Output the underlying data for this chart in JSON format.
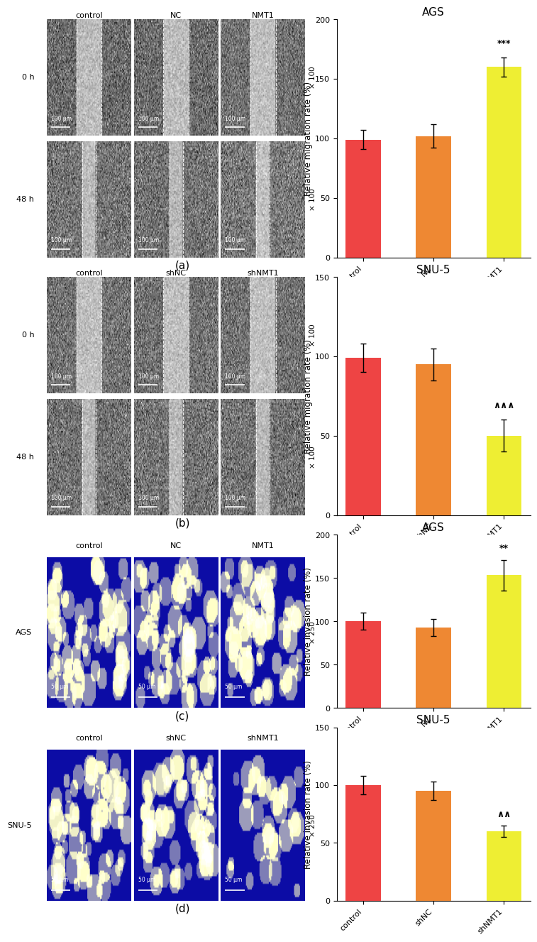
{
  "panels": [
    {
      "id": "a",
      "title": "AGS",
      "ylabel": "Relative migration rate (%)",
      "ylim": [
        0,
        200
      ],
      "yticks": [
        0,
        50,
        100,
        150,
        200
      ],
      "categories": [
        "control",
        "NC",
        "NMT1"
      ],
      "values": [
        99,
        102,
        160
      ],
      "errors": [
        8,
        10,
        8
      ],
      "colors": [
        "#ee4444",
        "#ee8833",
        "#eeee33"
      ],
      "sig_symbol": "***",
      "sig_bar_index": 2
    },
    {
      "id": "b",
      "title": "SNU-5",
      "ylabel": "Relative migration rate (%)",
      "ylim": [
        0,
        150
      ],
      "yticks": [
        0,
        50,
        100,
        150
      ],
      "categories": [
        "control",
        "shNC",
        "shNMT1"
      ],
      "values": [
        99,
        95,
        50
      ],
      "errors": [
        9,
        10,
        10
      ],
      "colors": [
        "#ee4444",
        "#ee8833",
        "#eeee33"
      ],
      "sig_symbol": "∧∧∧",
      "sig_bar_index": 2
    },
    {
      "id": "c",
      "title": "AGS",
      "ylabel": "Relative invasion rate (%)",
      "ylim": [
        0,
        200
      ],
      "yticks": [
        0,
        50,
        100,
        150,
        200
      ],
      "categories": [
        "control",
        "NC",
        "NMT1"
      ],
      "values": [
        100,
        93,
        153
      ],
      "errors": [
        10,
        10,
        18
      ],
      "colors": [
        "#ee4444",
        "#ee8833",
        "#eeee33"
      ],
      "sig_symbol": "**",
      "sig_bar_index": 2
    },
    {
      "id": "d",
      "title": "SNU-5",
      "ylabel": "Relative invasion rate (%)",
      "ylim": [
        0,
        150
      ],
      "yticks": [
        0,
        50,
        100,
        150
      ],
      "categories": [
        "control",
        "shNC",
        "shNMT1"
      ],
      "values": [
        100,
        95,
        60
      ],
      "errors": [
        8,
        8,
        5
      ],
      "colors": [
        "#ee4444",
        "#ee8833",
        "#eeee33"
      ],
      "sig_symbol": "∧∧",
      "sig_bar_index": 2
    }
  ],
  "background_color": "#ffffff",
  "bar_width": 0.5,
  "label_fontsize": 8.5,
  "title_fontsize": 11,
  "tick_fontsize": 8,
  "panel_label_fontsize": 11
}
